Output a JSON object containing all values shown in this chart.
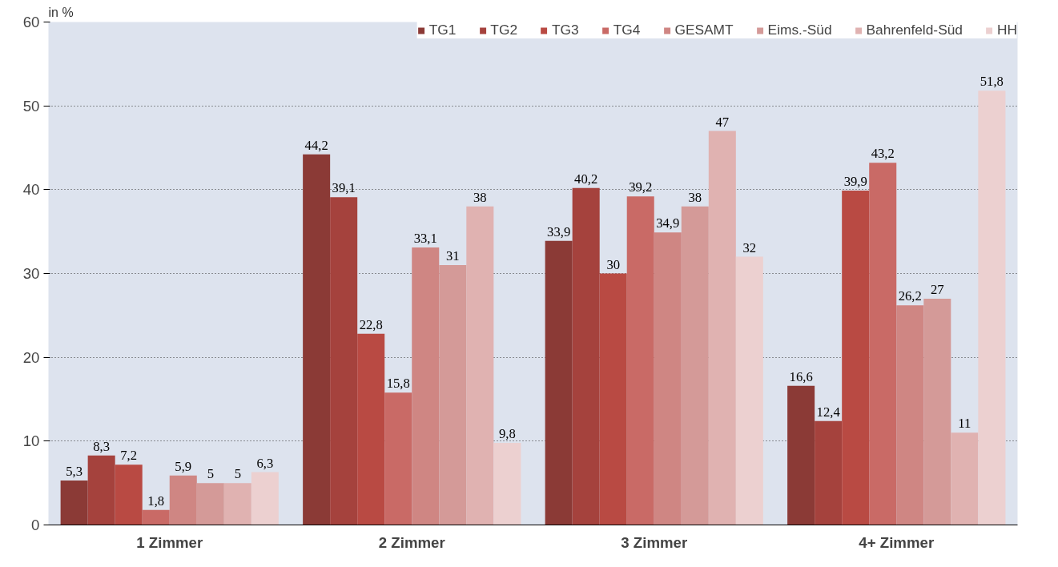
{
  "chart_data": {
    "type": "bar",
    "ylabel": "in %",
    "categories": [
      "1 Zimmer",
      "2 Zimmer",
      "3 Zimmer",
      "4+ Zimmer"
    ],
    "series": [
      {
        "name": "TG1",
        "color": "#8b3a36",
        "values": [
          5.3,
          44.2,
          33.9,
          16.6
        ],
        "value_labels": [
          "5,3",
          "44,2",
          "33,9",
          "16,6"
        ]
      },
      {
        "name": "TG2",
        "color": "#a5423d",
        "values": [
          8.3,
          39.1,
          40.2,
          12.4
        ],
        "value_labels": [
          "8,3",
          "39,1",
          "40,2",
          "12,4"
        ]
      },
      {
        "name": "TG3",
        "color": "#b94a43",
        "values": [
          7.2,
          22.8,
          30,
          39.9
        ],
        "value_labels": [
          "7,2",
          "22,8",
          "30",
          "39,9"
        ]
      },
      {
        "name": "TG4",
        "color": "#c96a66",
        "values": [
          1.8,
          15.8,
          39.2,
          43.2
        ],
        "value_labels": [
          "1,8",
          "15,8",
          "39,2",
          "43,2"
        ]
      },
      {
        "name": "GESAMT",
        "color": "#cf8683",
        "values": [
          5.9,
          33.1,
          34.9,
          26.2
        ],
        "value_labels": [
          "5,9",
          "33,1",
          "34,9",
          "26,2"
        ]
      },
      {
        "name": "Eims.-Süd",
        "color": "#d49a98",
        "values": [
          5,
          31,
          38,
          27
        ],
        "value_labels": [
          "5",
          "31",
          "38",
          "27"
        ]
      },
      {
        "name": "Bahrenfeld-Süd",
        "color": "#e0b2b1",
        "values": [
          5,
          38,
          47,
          11
        ],
        "value_labels": [
          "5",
          "38",
          "47",
          "11"
        ]
      },
      {
        "name": "HH",
        "color": "#ecd0d0",
        "values": [
          6.3,
          9.8,
          32,
          51.8
        ],
        "value_labels": [
          "6,3",
          "9,8",
          "32",
          "51,8"
        ]
      }
    ],
    "ylim": [
      0,
      60
    ],
    "yticks": [
      0,
      10,
      20,
      30,
      40,
      50,
      60
    ],
    "grid": "y",
    "legend": "top"
  }
}
